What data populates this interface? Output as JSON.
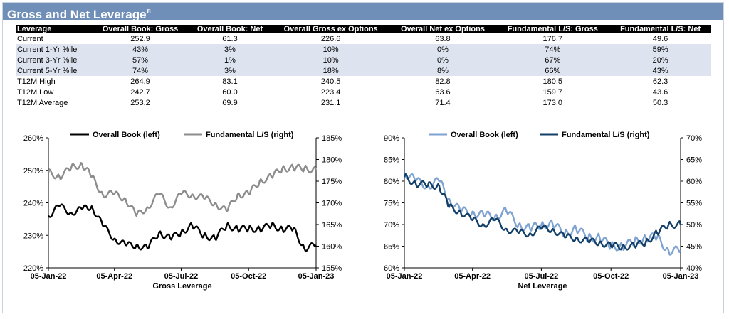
{
  "title": "Gross and Net Leverage",
  "title_footnote": "8",
  "table": {
    "headers": [
      "Leverage",
      "Overall Book: Gross",
      "Overall Book: Net",
      "Overall Gross ex Options",
      "Overall Net ex Options",
      "Fundamental L/S: Gross",
      "Fundamental L/S: Net"
    ],
    "rows": [
      {
        "label": "Current",
        "values": [
          "252.9",
          "61.3",
          "226.6",
          "63.8",
          "176.7",
          "49.6"
        ],
        "style": "plain"
      },
      {
        "label": "Current 1-Yr %ile",
        "values": [
          "43%",
          "3%",
          "10%",
          "0%",
          "74%",
          "59%"
        ],
        "style": "pct"
      },
      {
        "label": "Current 3-Yr %ile",
        "values": [
          "57%",
          "1%",
          "10%",
          "0%",
          "67%",
          "20%"
        ],
        "style": "pct"
      },
      {
        "label": "Current 5-Yr %ile",
        "values": [
          "74%",
          "3%",
          "18%",
          "8%",
          "66%",
          "43%"
        ],
        "style": "pct"
      },
      {
        "label": "T12M High",
        "values": [
          "264.9",
          "83.1",
          "240.5",
          "82.8",
          "180.5",
          "62.3"
        ],
        "style": "plain"
      },
      {
        "label": "T12M Low",
        "values": [
          "242.7",
          "60.0",
          "223.4",
          "63.6",
          "159.7",
          "43.6"
        ],
        "style": "plain"
      },
      {
        "label": "T12M Average",
        "values": [
          "253.2",
          "69.9",
          "231.1",
          "71.4",
          "173.0",
          "50.3"
        ],
        "style": "plain"
      }
    ]
  },
  "chart_data": [
    {
      "type": "line",
      "xlabel": "Gross Leverage",
      "x_ticks": [
        "05-Jan-22",
        "05-Apr-22",
        "05-Jul-22",
        "05-Oct-22",
        "05-Jan-23"
      ],
      "y_left": {
        "ticks": [
          "220%",
          "230%",
          "240%",
          "250%",
          "260%"
        ],
        "lim": [
          220,
          260
        ]
      },
      "y_right": {
        "ticks": [
          "155%",
          "160%",
          "165%",
          "170%",
          "175%",
          "180%",
          "185%"
        ],
        "lim": [
          155,
          185
        ]
      },
      "legend": "top",
      "series": [
        {
          "name": "Overall Book (left)",
          "axis": "left",
          "color": "#000000",
          "x": [
            "2022-01-05",
            "2022-01-20",
            "2022-02-05",
            "2022-02-20",
            "2022-03-05",
            "2022-03-20",
            "2022-04-05",
            "2022-04-20",
            "2022-05-05",
            "2022-05-20",
            "2022-06-05",
            "2022-06-20",
            "2022-07-05",
            "2022-07-20",
            "2022-08-05",
            "2022-08-20",
            "2022-09-05",
            "2022-09-20",
            "2022-10-05",
            "2022-10-20",
            "2022-11-05",
            "2022-11-20",
            "2022-12-05",
            "2022-12-20",
            "2023-01-05"
          ],
          "values": [
            236,
            239,
            237,
            238,
            239,
            233,
            229,
            227,
            227,
            226,
            231,
            229,
            231,
            233,
            230,
            229,
            233,
            232,
            232,
            232,
            233,
            232,
            232,
            226,
            227
          ]
        },
        {
          "name": "Fundamental L/S (right)",
          "axis": "right",
          "color": "#8c8c8c",
          "x": [
            "2022-01-05",
            "2022-01-20",
            "2022-02-05",
            "2022-02-20",
            "2022-03-05",
            "2022-03-20",
            "2022-04-05",
            "2022-04-20",
            "2022-05-05",
            "2022-05-20",
            "2022-06-05",
            "2022-06-20",
            "2022-07-05",
            "2022-07-20",
            "2022-08-05",
            "2022-08-20",
            "2022-09-05",
            "2022-09-20",
            "2022-10-05",
            "2022-10-20",
            "2022-11-05",
            "2022-11-20",
            "2022-12-05",
            "2022-12-20",
            "2023-01-05"
          ],
          "values": [
            177,
            176,
            178,
            179,
            176,
            172,
            172,
            171,
            167,
            169,
            172,
            169,
            172,
            172,
            171,
            170,
            168,
            172,
            172,
            175,
            176,
            178,
            178,
            178,
            177.5
          ]
        }
      ]
    },
    {
      "type": "line",
      "xlabel": "Net Leverage",
      "x_ticks": [
        "05-Jan-22",
        "05-Apr-22",
        "05-Jul-22",
        "05-Oct-22",
        "05-Jan-23"
      ],
      "y_left": {
        "ticks": [
          "60%",
          "65%",
          "70%",
          "75%",
          "80%",
          "85%",
          "90%"
        ],
        "lim": [
          60,
          90
        ]
      },
      "y_right": {
        "ticks": [
          "40%",
          "45%",
          "50%",
          "55%",
          "60%",
          "65%",
          "70%"
        ],
        "lim": [
          40,
          70
        ]
      },
      "legend": "top",
      "series": [
        {
          "name": "Overall Book (left)",
          "axis": "left",
          "color": "#7fa3d0",
          "x": [
            "2022-01-05",
            "2022-01-20",
            "2022-02-05",
            "2022-02-20",
            "2022-03-05",
            "2022-03-20",
            "2022-04-05",
            "2022-04-20",
            "2022-05-05",
            "2022-05-20",
            "2022-06-05",
            "2022-06-20",
            "2022-07-05",
            "2022-07-20",
            "2022-08-05",
            "2022-08-20",
            "2022-09-05",
            "2022-09-20",
            "2022-10-05",
            "2022-10-20",
            "2022-11-05",
            "2022-11-20",
            "2022-12-05",
            "2022-12-20",
            "2023-01-05"
          ],
          "values": [
            82,
            80,
            79,
            80,
            76,
            73,
            73,
            72,
            72,
            73,
            70,
            69,
            70,
            70,
            68,
            69,
            67,
            67,
            65,
            65,
            66,
            67,
            67,
            64,
            64
          ]
        },
        {
          "name": "Fundamental L/S (right)",
          "axis": "right",
          "color": "#123f68",
          "x": [
            "2022-01-05",
            "2022-01-20",
            "2022-02-05",
            "2022-02-20",
            "2022-03-05",
            "2022-03-20",
            "2022-04-05",
            "2022-04-20",
            "2022-05-05",
            "2022-05-20",
            "2022-06-05",
            "2022-06-20",
            "2022-07-05",
            "2022-07-20",
            "2022-08-05",
            "2022-08-20",
            "2022-09-05",
            "2022-09-20",
            "2022-10-05",
            "2022-10-20",
            "2022-11-05",
            "2022-11-20",
            "2022-12-05",
            "2022-12-20",
            "2023-01-05"
          ],
          "values": [
            61,
            59.5,
            59,
            59,
            54,
            53,
            51,
            50,
            51,
            49,
            48,
            48,
            49,
            49,
            47,
            47,
            46,
            46,
            45,
            45,
            45,
            46,
            48,
            50,
            50
          ]
        }
      ]
    }
  ]
}
